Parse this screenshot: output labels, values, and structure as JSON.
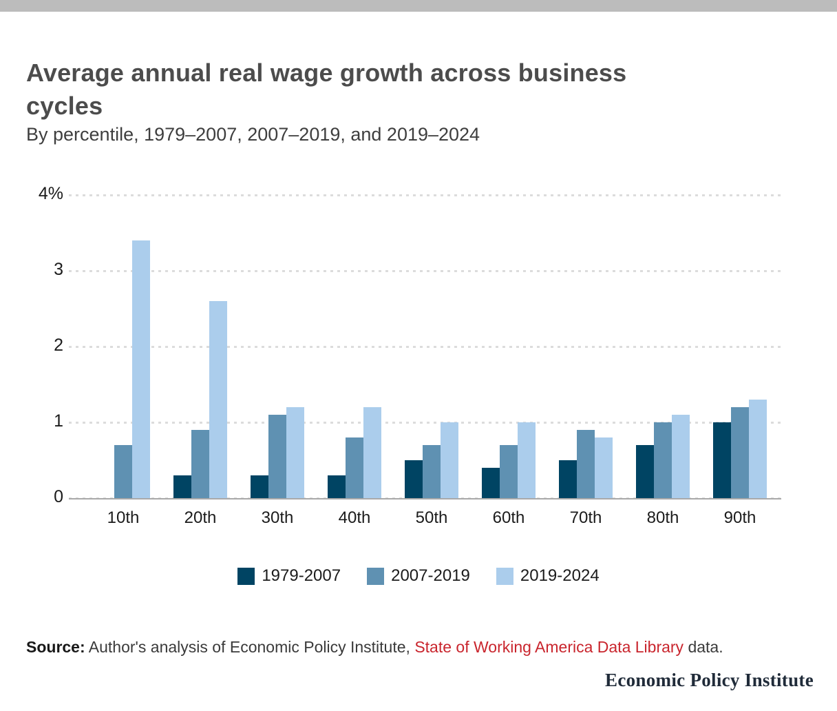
{
  "page": {
    "top_bar_color": "#bcbcbc"
  },
  "header": {
    "title_line1": "Average annual real wage growth across business",
    "title_line2": "cycles",
    "subtitle": "By percentile, 1979–2007, 2007–2019, and 2019–2024"
  },
  "chart_data": {
    "type": "bar",
    "title": "Average annual real wage growth across business cycles",
    "subtitle": "By percentile, 1979–2007, 2007–2019, and 2019–2024",
    "xlabel": "",
    "ylabel": "",
    "ylim": [
      0,
      4
    ],
    "grid": "dotted horizontal gridlines",
    "legend_position": "bottom",
    "categories": [
      "10th",
      "20th",
      "30th",
      "40th",
      "50th",
      "60th",
      "70th",
      "80th",
      "90th"
    ],
    "series": [
      {
        "name": "1979-2007",
        "color": "#004463",
        "values": [
          0.0,
          0.3,
          0.3,
          0.3,
          0.5,
          0.4,
          0.5,
          0.7,
          1.0
        ]
      },
      {
        "name": "2007-2019",
        "color": "#5f91b2",
        "values": [
          0.7,
          0.9,
          1.1,
          0.8,
          0.7,
          0.7,
          0.9,
          1.0,
          1.2
        ]
      },
      {
        "name": "2019-2024",
        "color": "#abcdec",
        "values": [
          3.4,
          2.6,
          1.2,
          1.2,
          1.0,
          1.0,
          0.8,
          1.1,
          1.3
        ]
      }
    ],
    "y_ticks": [
      {
        "value": 4,
        "label": "4%"
      },
      {
        "value": 3,
        "label": "3"
      },
      {
        "value": 2,
        "label": "2"
      },
      {
        "value": 1,
        "label": "1"
      },
      {
        "value": 0,
        "label": "0"
      }
    ]
  },
  "footer": {
    "source_prefix": "Source:",
    "source_body": " Author's analysis of Economic Policy Institute, ",
    "source_link": "State of Working America Data Library",
    "source_suffix": " data.",
    "link_color": "#c9252d",
    "brand": "Economic Policy Institute"
  }
}
